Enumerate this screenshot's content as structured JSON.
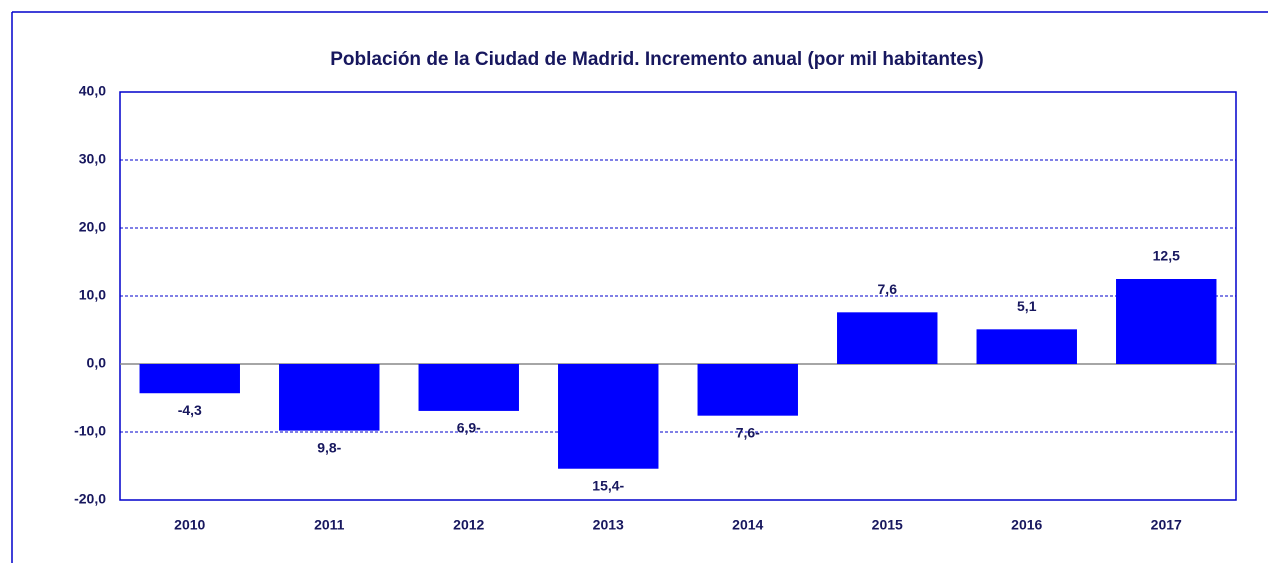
{
  "chart_data": {
    "type": "bar",
    "title": "Población de la Ciudad de Madrid. Incremento anual (por mil habitantes)",
    "categories": [
      "2010",
      "2011",
      "2012",
      "2013",
      "2014",
      "2015",
      "2016",
      "2017"
    ],
    "values": [
      -4.3,
      -9.8,
      -6.9,
      -15.4,
      -7.6,
      7.6,
      5.1,
      12.5
    ],
    "value_labels": [
      "-4,3",
      "9,8-",
      "6,9-",
      "15,4-",
      "7,6-",
      "7,6",
      "5,1",
      "12,5"
    ],
    "color": "#0000ff",
    "ylim": [
      -20,
      40
    ],
    "yticks": [
      {
        "value": -20,
        "label": "-20,0"
      },
      {
        "value": -10,
        "label": "-10,0"
      },
      {
        "value": 0,
        "label": "0,0"
      },
      {
        "value": 10,
        "label": "10,0"
      },
      {
        "value": 20,
        "label": "20,0"
      },
      {
        "value": 30,
        "label": "30,0"
      },
      {
        "value": 40,
        "label": "40,0"
      }
    ],
    "grid": true
  }
}
